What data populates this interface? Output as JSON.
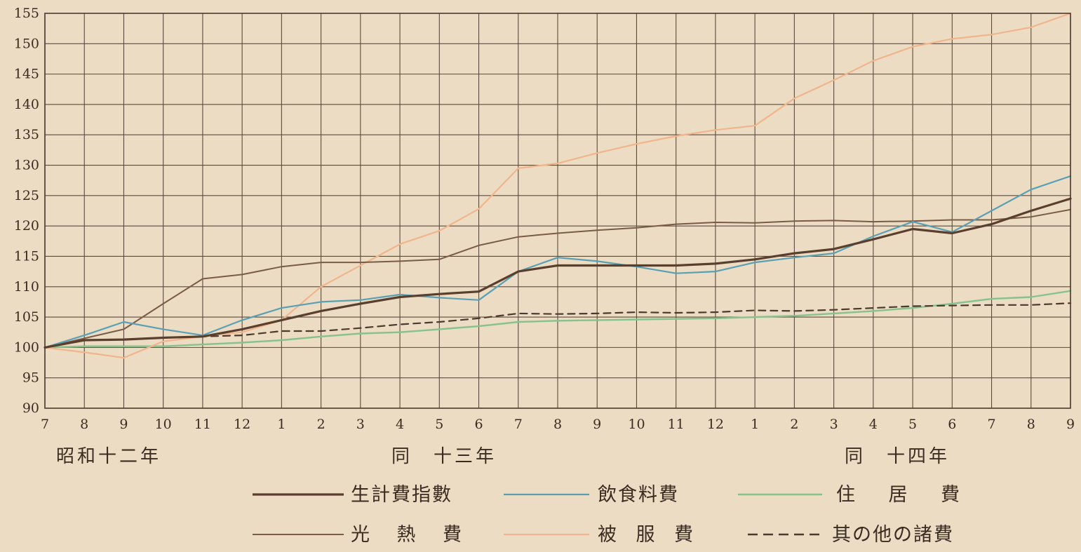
{
  "chart_data": {
    "type": "line",
    "ylim": [
      90,
      155
    ],
    "y_ticks": [
      "90",
      "95",
      "100",
      "105",
      "110",
      "115",
      "120",
      "125",
      "130",
      "135",
      "140",
      "145",
      "150",
      "155"
    ],
    "x_ticks": [
      "7",
      "8",
      "9",
      "10",
      "11",
      "12",
      "1",
      "2",
      "3",
      "4",
      "5",
      "6",
      "7",
      "8",
      "9",
      "10",
      "11",
      "12",
      "1",
      "2",
      "3",
      "4",
      "5",
      "6",
      "7",
      "8",
      "9"
    ],
    "era_labels": [
      "昭和十二年",
      "同　十三年",
      "同　十四年"
    ],
    "grid": true,
    "legend_position": "bottom",
    "series": [
      {
        "name": "生計費指數",
        "color": "#5a3e2e",
        "dash": "solid",
        "width": 3.2,
        "values": [
          100,
          101.2,
          101.3,
          101.6,
          101.8,
          103,
          104.5,
          106,
          107.2,
          108.3,
          108.8,
          109.2,
          112.5,
          113.5,
          113.5,
          113.5,
          113.5,
          113.8,
          114.5,
          115.5,
          116.2,
          117.8,
          119.5,
          118.8,
          120.3,
          122.5,
          124.5
        ]
      },
      {
        "name": "飲食料費",
        "color": "#5aa0b4",
        "dash": "solid",
        "width": 2.2,
        "values": [
          100,
          102,
          104.2,
          103,
          102,
          104.5,
          106.5,
          107.5,
          107.8,
          108.7,
          108.2,
          107.8,
          112.5,
          114.8,
          114.2,
          113.3,
          112.2,
          112.5,
          114,
          114.8,
          115.5,
          118.3,
          120.7,
          119,
          122.5,
          126,
          128.2
        ]
      },
      {
        "name": "住居費",
        "color": "#86c28c",
        "dash": "solid",
        "width": 2.4,
        "values": [
          100,
          100.2,
          100.2,
          100.2,
          100.5,
          100.8,
          101.2,
          101.8,
          102.3,
          102.5,
          103,
          103.5,
          104.2,
          104.4,
          104.5,
          104.6,
          104.7,
          104.8,
          105,
          105.2,
          105.6,
          106,
          106.5,
          107.2,
          108,
          108.3,
          109.3
        ]
      },
      {
        "name": "光熱費",
        "color": "#7a5c46",
        "dash": "solid",
        "width": 2.0,
        "values": [
          100,
          101.5,
          103,
          107.2,
          111.3,
          112,
          113.3,
          114,
          114,
          114.2,
          114.5,
          116.8,
          118.2,
          118.8,
          119.3,
          119.7,
          120.3,
          120.6,
          120.5,
          120.8,
          120.9,
          120.7,
          120.8,
          121,
          121,
          121.5,
          122.7
        ]
      },
      {
        "name": "被服費",
        "color": "#f0b58a",
        "dash": "solid",
        "width": 2.2,
        "values": [
          100,
          99.2,
          98.3,
          101,
          101.8,
          102.5,
          104.5,
          110,
          113.5,
          117,
          119.2,
          122.8,
          129.5,
          130.3,
          132,
          133.5,
          134.8,
          135.8,
          136.5,
          141,
          144,
          147.2,
          149.5,
          150.8,
          151.5,
          152.7,
          155
        ]
      },
      {
        "name": "其の他の諸費",
        "color": "#4a3a30",
        "dash": "10,7",
        "width": 2.2,
        "values": [
          100,
          101.2,
          101.3,
          101.6,
          101.8,
          102,
          102.7,
          102.7,
          103.2,
          103.8,
          104.2,
          104.8,
          105.6,
          105.5,
          105.6,
          105.8,
          105.7,
          105.8,
          106.1,
          106,
          106.2,
          106.5,
          106.8,
          106.9,
          107,
          107,
          107.3
        ]
      }
    ]
  }
}
